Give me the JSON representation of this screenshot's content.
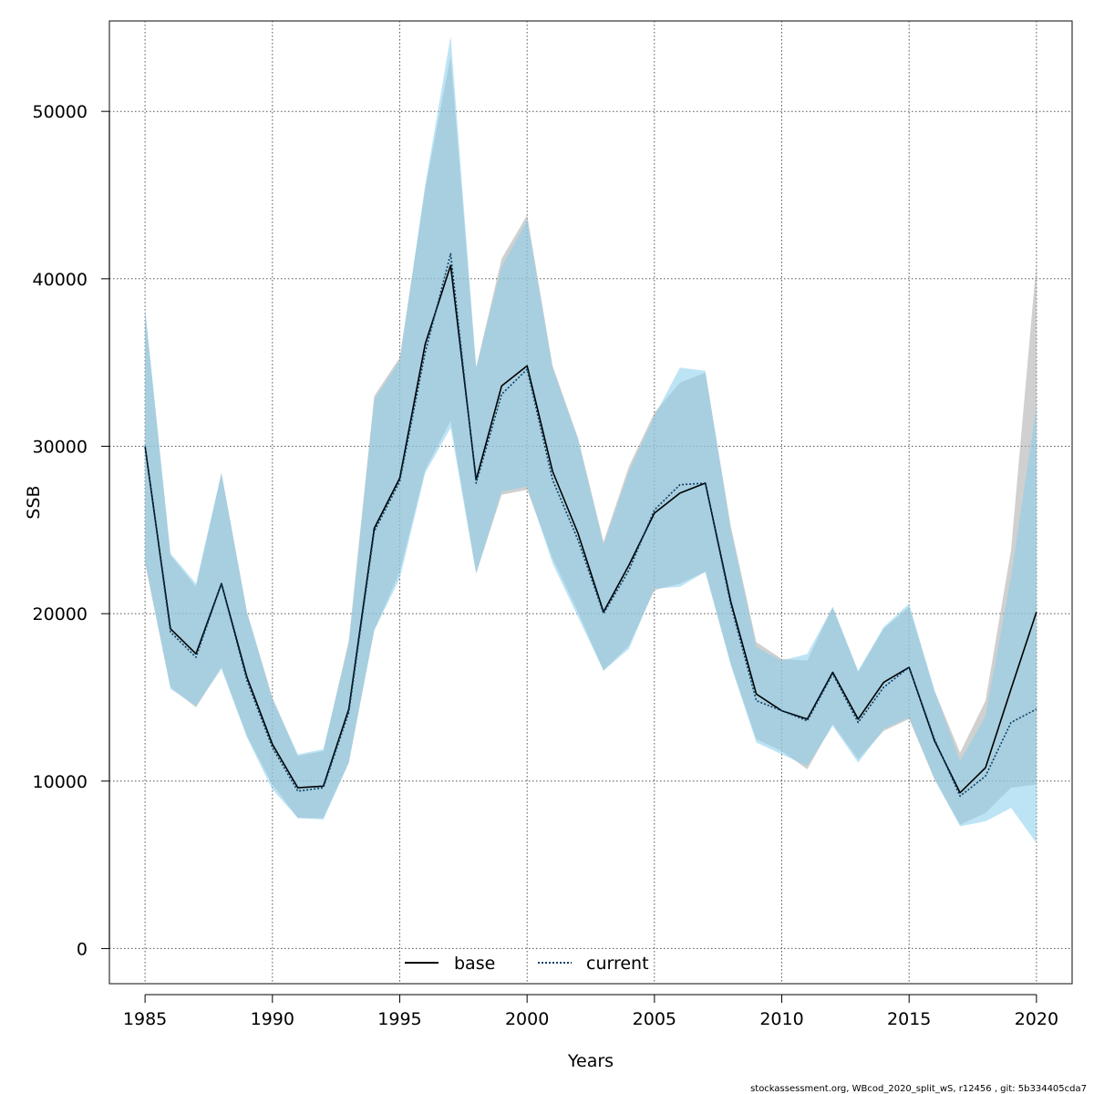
{
  "chart_data": {
    "type": "line",
    "title": "",
    "xlabel": "Years",
    "ylabel": "SSB",
    "xlim": [
      1983.6,
      2021.4
    ],
    "ylim": [
      -2100,
      55400
    ],
    "xticks": [
      1985,
      1990,
      1995,
      2000,
      2005,
      2010,
      2015,
      2020
    ],
    "yticks": [
      0,
      10000,
      20000,
      30000,
      40000,
      50000
    ],
    "grid": true,
    "legend_position": "bottom-center",
    "x": [
      1985,
      1986,
      1987,
      1988,
      1989,
      1990,
      1991,
      1992,
      1993,
      1994,
      1995,
      1996,
      1997,
      1998,
      1999,
      2000,
      2001,
      2002,
      2003,
      2004,
      2005,
      2006,
      2007,
      2008,
      2009,
      2010,
      2011,
      2012,
      2013,
      2014,
      2015,
      2016,
      2017,
      2018,
      2019,
      2020
    ],
    "series": [
      {
        "name": "base",
        "style": "solid",
        "line_color": "#000000",
        "band_color": "#a9a9a9",
        "values": [
          30000,
          19100,
          17600,
          21800,
          16200,
          12200,
          9600,
          9700,
          14300,
          25100,
          28100,
          36100,
          40800,
          28000,
          33600,
          34800,
          28500,
          24800,
          20100,
          22900,
          26000,
          27200,
          27800,
          20700,
          15200,
          14200,
          13700,
          16500,
          13700,
          15900,
          16800,
          12400,
          9300,
          10800,
          15500,
          20100
        ],
        "lower": [
          23000,
          15600,
          14400,
          16800,
          12700,
          9800,
          7800,
          7800,
          11100,
          19000,
          22500,
          28600,
          31500,
          22400,
          27100,
          27400,
          23300,
          20100,
          16600,
          18100,
          21400,
          21800,
          22500,
          17000,
          12500,
          11800,
          10700,
          13400,
          11300,
          13000,
          13700,
          10100,
          7400,
          8100,
          9600,
          9800
        ],
        "upper": [
          38200,
          23500,
          21600,
          28400,
          20100,
          15000,
          11500,
          11800,
          18400,
          33000,
          35300,
          45400,
          53300,
          34700,
          41200,
          43800,
          34800,
          30500,
          24300,
          28800,
          32000,
          33800,
          34400,
          25200,
          18300,
          17300,
          17200,
          20400,
          16500,
          19100,
          20400,
          15400,
          11700,
          14800,
          23800,
          41000
        ]
      },
      {
        "name": "current",
        "style": "dotted",
        "line_color": "#0a3f66",
        "band_color": "#87ceeb",
        "values": [
          30000,
          18900,
          17400,
          21800,
          16000,
          12000,
          9400,
          9600,
          14100,
          24900,
          27900,
          35600,
          41500,
          27800,
          33100,
          34600,
          28000,
          24400,
          20000,
          22600,
          26200,
          27700,
          27800,
          20500,
          14800,
          14200,
          13600,
          16400,
          13500,
          15600,
          16800,
          12500,
          9100,
          10300,
          13500,
          14300
        ],
        "lower": [
          23100,
          15500,
          14500,
          16700,
          12600,
          9500,
          7800,
          7700,
          11100,
          19000,
          22100,
          28400,
          31100,
          22400,
          27300,
          27600,
          23000,
          19800,
          16600,
          17900,
          21500,
          21600,
          22500,
          16900,
          12300,
          11600,
          10900,
          13300,
          11100,
          13100,
          13800,
          10100,
          7300,
          7600,
          8400,
          6300
        ],
        "upper": [
          38200,
          23600,
          21800,
          28400,
          20100,
          14900,
          11600,
          11900,
          18200,
          32800,
          35100,
          45600,
          54500,
          34700,
          40700,
          43500,
          34700,
          30400,
          24100,
          28500,
          31800,
          34700,
          34500,
          25000,
          18000,
          17200,
          17600,
          20400,
          16600,
          19200,
          20600,
          15400,
          11200,
          13900,
          22200,
          32400
        ]
      }
    ],
    "legend": [
      {
        "label": "base",
        "style": "solid"
      },
      {
        "label": "current",
        "style": "dotted"
      }
    ]
  },
  "footer": "stockassessment.org, WBcod_2020_split_wS, r12456 , git: 5b334405cda7"
}
